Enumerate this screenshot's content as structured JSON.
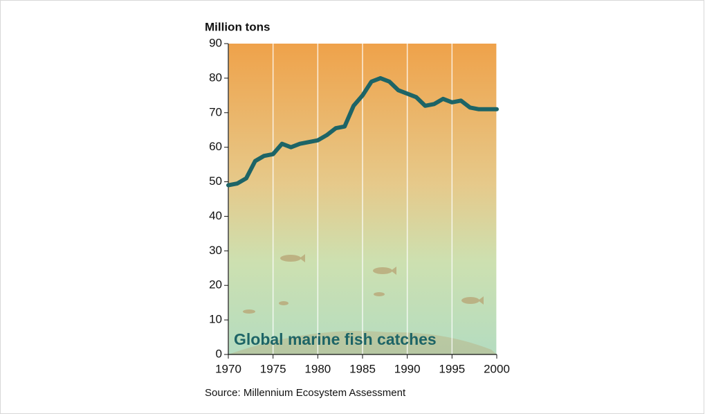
{
  "chart_data": {
    "type": "line",
    "y_label": "Million tons",
    "annotation": "Global marine fish catches",
    "source": "Source: Millennium Ecosystem Assessment",
    "x": [
      1970,
      1971,
      1972,
      1973,
      1974,
      1975,
      1976,
      1977,
      1978,
      1979,
      1980,
      1981,
      1982,
      1983,
      1984,
      1985,
      1986,
      1987,
      1988,
      1989,
      1990,
      1991,
      1992,
      1993,
      1994,
      1995,
      1996,
      1997,
      1998,
      1999,
      2000
    ],
    "values": [
      49,
      49.5,
      51,
      56,
      57.5,
      58,
      61,
      60,
      61,
      61.5,
      62,
      63.5,
      65.5,
      66,
      72,
      75,
      79,
      80,
      79,
      76.5,
      75.5,
      74.5,
      72,
      72.5,
      74,
      73,
      73.5,
      71.5,
      71,
      71,
      71
    ],
    "color": "#1d6466",
    "xlim": [
      1970,
      2000
    ],
    "xticks": [
      1970,
      1975,
      1980,
      1985,
      1990,
      1995,
      2000
    ],
    "ylim": [
      0,
      90
    ],
    "yticks": [
      0,
      10,
      20,
      30,
      40,
      50,
      60,
      70,
      80,
      90
    ],
    "grid": true
  }
}
